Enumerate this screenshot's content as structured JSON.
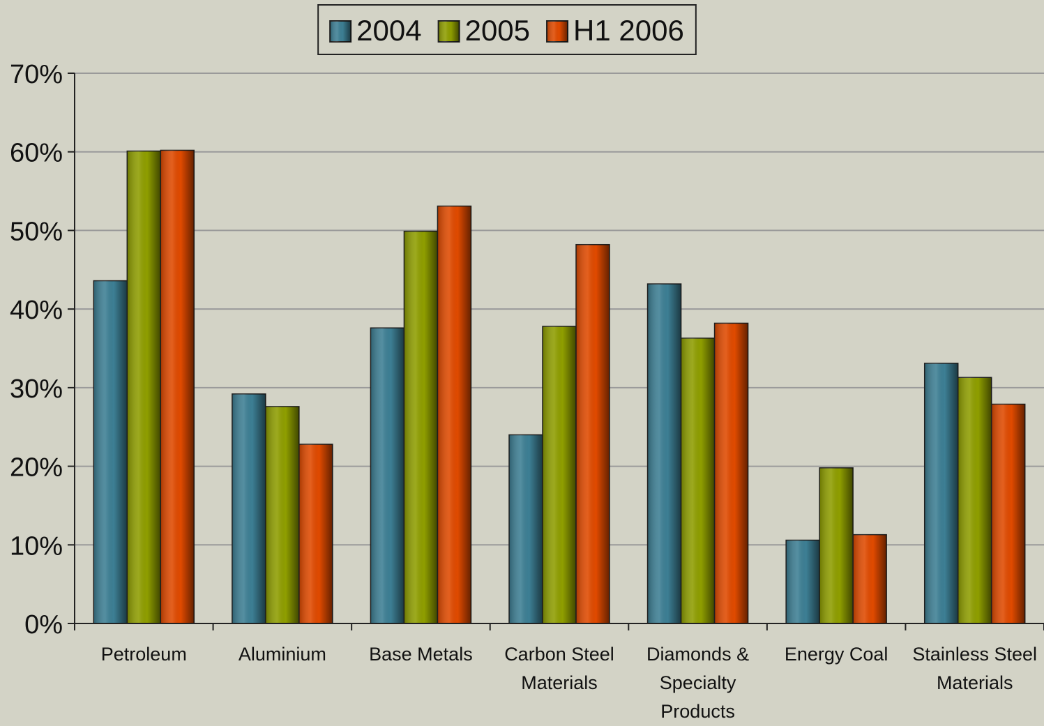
{
  "chart_data": {
    "type": "bar",
    "categories": [
      "Petroleum",
      "Aluminium",
      "Base Metals",
      "Carbon Steel Materials",
      "Diamonds & Specialty Products",
      "Energy Coal",
      "Stainless Steel Materials"
    ],
    "series": [
      {
        "name": "2004",
        "color": "#3d7f94",
        "values": [
          43.6,
          29.2,
          37.6,
          24.0,
          43.2,
          10.6,
          33.1
        ]
      },
      {
        "name": "2005",
        "color": "#8f9e00",
        "values": [
          60.1,
          27.6,
          49.9,
          37.8,
          36.3,
          19.8,
          31.3
        ]
      },
      {
        "name": "H1 2006",
        "color": "#e04a00",
        "values": [
          60.2,
          22.8,
          53.1,
          48.2,
          38.2,
          11.3,
          27.9
        ]
      }
    ],
    "ylim": [
      0,
      70
    ],
    "yticks": [
      {
        "value": 0,
        "label": "0%"
      },
      {
        "value": 10,
        "label": "10%"
      },
      {
        "value": 20,
        "label": "20%"
      },
      {
        "value": 30,
        "label": "30%"
      },
      {
        "value": 40,
        "label": "40%"
      },
      {
        "value": 50,
        "label": "50%"
      },
      {
        "value": 60,
        "label": "60%"
      },
      {
        "value": 70,
        "label": "70%"
      }
    ],
    "grid": true,
    "legend": "top"
  }
}
